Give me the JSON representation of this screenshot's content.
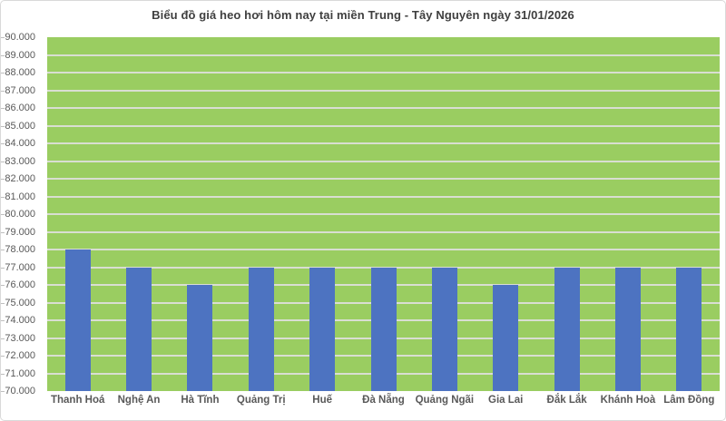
{
  "chart_data": {
    "type": "bar",
    "title": "Biểu đồ giá heo hơi hôm nay tại miền Trung - Tây Nguyên ngày 31/01/2026",
    "categories": [
      "Thanh Hoá",
      "Nghệ An",
      "Hà Tĩnh",
      "Quảng Trị",
      "Huế",
      "Đà Nẵng",
      "Quảng Ngãi",
      "Gia Lai",
      "Đắk Lắk",
      "Khánh Hoà",
      "Lâm Đồng"
    ],
    "values": [
      78000,
      77000,
      76000,
      77000,
      77000,
      77000,
      77000,
      76000,
      77000,
      77000,
      77000
    ],
    "xlabel": "",
    "ylabel": "",
    "ylim": [
      70000,
      90000
    ],
    "ytick_step": 1000,
    "ytick_label_format": "thousands-dot",
    "grid": "horizontal",
    "legend_position": "none",
    "colors": {
      "bar": "#4D73C1",
      "plot_background": "#9ACD61",
      "gridline": "#D9DED2",
      "axis_label": "#595959",
      "title": "#3F3F3F",
      "frame_border": "#D9D9D9",
      "page_background": "#FFFFFF"
    }
  }
}
